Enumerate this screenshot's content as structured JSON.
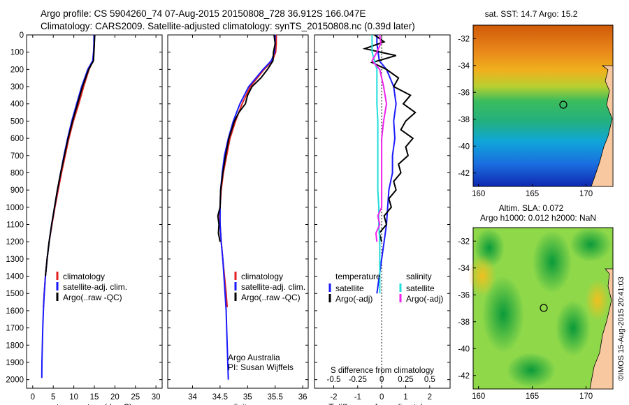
{
  "header": {
    "line1": "Argo profile: CS 5904260_74 07-Aug-2015 20150808_728 36.912S 166.047E",
    "line2": "Climatology: CARS2009. Satellite-adjusted climatology: synTS_20150808.nc (0.39d later)"
  },
  "depth_ticks": [
    0,
    100,
    200,
    300,
    400,
    500,
    600,
    700,
    800,
    900,
    1000,
    1100,
    1200,
    1300,
    1400,
    1500,
    1600,
    1700,
    1800,
    1900,
    2000
  ],
  "colors": {
    "climatology": "#e02020",
    "satellite": "#1a1aff",
    "argo": "#000000",
    "sat_s": "#22dddd",
    "argo_s": "#ee22ee"
  },
  "chart_data": [
    {
      "type": "line",
      "xlabel": "temperature (deg C)",
      "xticks": [
        0,
        5,
        10,
        15,
        20,
        25,
        30
      ],
      "xlim": [
        -1.5,
        31.5
      ],
      "ylim": [
        2050,
        0
      ],
      "legend": {
        "items": [
          "climatology",
          "satellite-adj. clim.",
          "Argo(..raw -QC)"
        ]
      },
      "series": [
        {
          "name": "climatology",
          "depth": [
            0,
            50,
            100,
            150,
            200,
            300,
            400,
            500,
            600,
            700,
            800,
            900,
            1000,
            1100,
            1200,
            1300,
            1400,
            1500,
            1580
          ],
          "values": [
            15.0,
            15.0,
            14.9,
            14.7,
            13.7,
            12.4,
            11.2,
            9.9,
            8.8,
            7.9,
            7.0,
            6.2,
            5.4,
            4.7,
            4.0,
            3.5,
            3.1,
            2.8,
            2.6
          ]
        },
        {
          "name": "satellite-adj. clim.",
          "depth": [
            0,
            50,
            100,
            150,
            200,
            300,
            400,
            500,
            600,
            700,
            800,
            900,
            1000,
            1100,
            1200,
            1300,
            1400,
            1500,
            1600,
            1700,
            1800,
            1900,
            1990
          ],
          "values": [
            14.9,
            14.9,
            14.8,
            14.6,
            13.4,
            11.9,
            10.7,
            9.5,
            8.5,
            7.6,
            6.8,
            6.0,
            5.3,
            4.6,
            4.0,
            3.5,
            3.1,
            2.8,
            2.6,
            2.45,
            2.35,
            2.25,
            2.2
          ]
        },
        {
          "name": "Argo(..raw -QC)",
          "depth": [
            0,
            50,
            100,
            150,
            200,
            300,
            400,
            500,
            600,
            700,
            800,
            900,
            1000,
            1100,
            1200,
            1300,
            1400
          ],
          "values": [
            15.1,
            15.0,
            14.9,
            14.8,
            13.6,
            12.1,
            10.9,
            9.7,
            8.6,
            7.7,
            6.8,
            6.0,
            5.3,
            4.6,
            4.0,
            3.5,
            3.1
          ]
        }
      ]
    },
    {
      "type": "line",
      "xlabel": "salinity",
      "xticks": [
        34,
        34.5,
        35,
        35.5,
        36
      ],
      "xlim": [
        33.55,
        36.1
      ],
      "ylim": [
        2050,
        0
      ],
      "legend": {
        "items": [
          "climatology",
          "satellite-adj. clim.",
          "Argo(..raw -QC)"
        ]
      },
      "annotation": [
        "Argo Australia",
        "PI: Susan Wijffels"
      ],
      "series": [
        {
          "name": "climatology",
          "depth": [
            0,
            50,
            100,
            150,
            200,
            300,
            400,
            500,
            600,
            700,
            800,
            900,
            1000,
            1050,
            1100,
            1200,
            1300,
            1400,
            1500,
            1580
          ],
          "values": [
            35.52,
            35.52,
            35.51,
            35.45,
            35.3,
            35.05,
            34.9,
            34.78,
            34.68,
            34.62,
            34.56,
            34.52,
            34.5,
            34.49,
            34.5,
            34.52,
            34.55,
            34.58,
            34.61,
            34.63
          ]
        },
        {
          "name": "satellite-adj. clim.",
          "depth": [
            0,
            50,
            100,
            150,
            200,
            300,
            400,
            500,
            600,
            700,
            800,
            900,
            1000,
            1100,
            1200,
            1300,
            1400,
            1500,
            1600,
            1700,
            1800,
            1900,
            2000
          ],
          "values": [
            35.5,
            35.5,
            35.49,
            35.43,
            35.28,
            35.02,
            34.86,
            34.74,
            34.65,
            34.58,
            34.54,
            34.51,
            34.5,
            34.5,
            34.52,
            34.55,
            34.57,
            34.59,
            34.61,
            34.62,
            34.63,
            34.64,
            34.65
          ]
        },
        {
          "name": "Argo(..raw -QC)",
          "depth": [
            0,
            50,
            100,
            150,
            200,
            250,
            300,
            350,
            400,
            450,
            500,
            600,
            700,
            800,
            900,
            1000,
            1050,
            1100,
            1150,
            1200
          ],
          "values": [
            35.48,
            35.5,
            35.47,
            35.46,
            35.36,
            35.24,
            35.08,
            35.0,
            34.96,
            34.84,
            34.76,
            34.66,
            34.6,
            34.55,
            34.51,
            34.5,
            34.46,
            34.48,
            34.47,
            34.5
          ]
        }
      ]
    },
    {
      "type": "line",
      "xlabel": "T difference from climatology",
      "xlabel2": "S difference from climatology",
      "xticks": [
        -2,
        -1,
        0,
        1,
        2
      ],
      "xticks2": [
        "-0.5",
        "-0.25",
        "0",
        "0.25",
        "0.5"
      ],
      "xlim": [
        -2.8,
        2.85
      ],
      "ylim": [
        2050,
        0
      ],
      "legend": {
        "temperature": "temperature",
        "salinity": "salinity",
        "items_t": [
          "satellite",
          "Argo(-adj)"
        ],
        "items_s": [
          "satellite",
          "Argo(-adj)"
        ]
      },
      "series": [
        {
          "name": "satellite",
          "depth": [
            0,
            50,
            100,
            150,
            200,
            300,
            400,
            500,
            600,
            700,
            800,
            900,
            1000,
            1100,
            1200,
            1300,
            1400,
            1500
          ],
          "values": [
            -0.2,
            -0.2,
            -0.15,
            -0.1,
            0.2,
            0.5,
            0.6,
            0.5,
            0.55,
            0.45,
            0.45,
            0.3,
            0.25,
            0.2,
            0.1,
            0.0,
            -0.1,
            -0.2
          ]
        },
        {
          "name": "Argo(-adj)",
          "depth": [
            0,
            40,
            80,
            120,
            160,
            200,
            250,
            300,
            350,
            400,
            450,
            500,
            550,
            600,
            650,
            700,
            750,
            800,
            850,
            900,
            950,
            1000,
            1050,
            1100,
            1150,
            1200
          ],
          "values": [
            -0.3,
            0.1,
            -0.7,
            0.6,
            -0.4,
            0.2,
            0.7,
            0.5,
            1.2,
            0.9,
            1.4,
            1.0,
            0.8,
            1.3,
            1.0,
            1.1,
            0.7,
            0.8,
            0.5,
            0.6,
            0.3,
            0.4,
            0.1,
            0.2,
            -0.1,
            0.0
          ]
        },
        {
          "name": "satellite",
          "depth": [
            0,
            100,
            200,
            300,
            400,
            500,
            600,
            700,
            800,
            900,
            1000,
            1100,
            1200,
            1300,
            1400,
            1500
          ],
          "values": [
            -0.1,
            -0.1,
            -0.05,
            -0.05,
            -0.05,
            -0.04,
            -0.04,
            -0.04,
            -0.04,
            -0.04,
            -0.03,
            -0.03,
            -0.02,
            -0.02,
            -0.02,
            -0.02
          ]
        },
        {
          "name": "Argo(-adj)",
          "depth": [
            0,
            50,
            100,
            150,
            200,
            250,
            300,
            400,
            500,
            600,
            700,
            800,
            900,
            1000,
            1050,
            1100,
            1150,
            1200
          ],
          "values": [
            -0.02,
            -0.01,
            -0.05,
            -0.1,
            -0.02,
            0.0,
            0.02,
            0.05,
            0.02,
            0.0,
            0.0,
            0.0,
            0.0,
            0.0,
            -0.04,
            -0.02,
            -0.06,
            -0.05
          ]
        }
      ]
    },
    {
      "type": "heatmap",
      "title": "sat. SST: 14.7  Argo: 15.2",
      "xticks": [
        160,
        165,
        170
      ],
      "yticks": [
        -32,
        -34,
        -36,
        -38,
        -40,
        -42
      ],
      "xlim": [
        159.5,
        172.5
      ],
      "ylim": [
        -43,
        -31
      ],
      "marker": {
        "lon": 166.047,
        "lat": -36.912
      }
    },
    {
      "type": "heatmap",
      "title": "Altim. SLA: 0.072",
      "subtitle": "Argo h1000: 0.012  h2000: NaN",
      "xticks": [
        160,
        165,
        170
      ],
      "yticks": [
        -32,
        -34,
        -36,
        -38,
        -40,
        -42
      ],
      "xlim": [
        159.5,
        172.5
      ],
      "ylim": [
        -43,
        -31
      ],
      "marker": {
        "lon": 166.047,
        "lat": -36.912
      }
    }
  ],
  "watermark": "©IMOS 15-Aug-2015 20:41:03"
}
